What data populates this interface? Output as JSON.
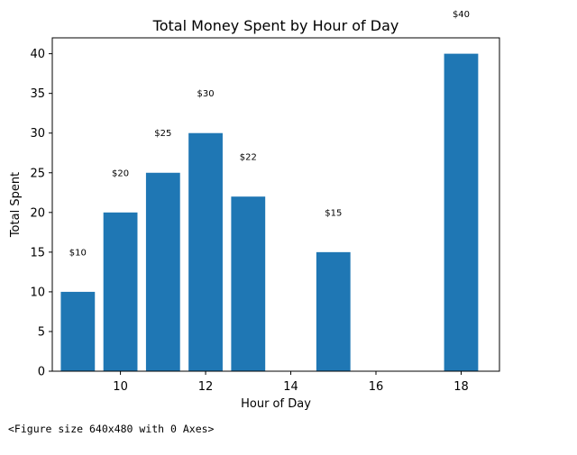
{
  "chart_data": {
    "type": "bar",
    "title": "Total Money Spent by Hour of Day",
    "xlabel": "Hour of Day",
    "ylabel": "Total Spent",
    "x": [
      9,
      10,
      11,
      12,
      13,
      15,
      18
    ],
    "values": [
      10,
      20,
      25,
      30,
      22,
      15,
      40
    ],
    "data_labels": [
      "$10",
      "$20",
      "$25",
      "$30",
      "$22",
      "$15",
      "$40"
    ],
    "xlim": [
      8.4,
      18.9
    ],
    "ylim": [
      0,
      42
    ],
    "xticks": [
      10,
      12,
      14,
      16,
      18
    ],
    "yticks": [
      0,
      5,
      10,
      15,
      20,
      25,
      30,
      35,
      40
    ],
    "bar_color": "#1f77b4",
    "grid": false,
    "legend": "none"
  },
  "figure_note": "<Figure size 640x480 with 0 Axes>"
}
